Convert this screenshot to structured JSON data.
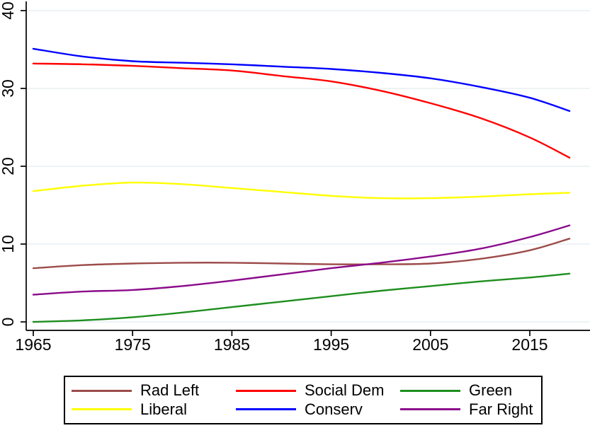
{
  "figure": {
    "background_color": "#ffffff",
    "axis_color": "#000000",
    "gridline_color": "#e8eff4",
    "tick_label_color": "#000000"
  },
  "chart_data": {
    "type": "line",
    "title": "",
    "xlabel": "",
    "ylabel": "",
    "x": [
      1965,
      1970,
      1975,
      1980,
      1985,
      1990,
      1995,
      2000,
      2005,
      2010,
      2015,
      2019
    ],
    "series": [
      {
        "name": "Rad Left",
        "color": "#9c4c4a",
        "values": [
          6.9,
          7.3,
          7.5,
          7.6,
          7.6,
          7.5,
          7.4,
          7.4,
          7.5,
          8.1,
          9.2,
          10.7
        ]
      },
      {
        "name": "Social Dem",
        "color": "#ff0000",
        "values": [
          33.2,
          33.1,
          32.9,
          32.6,
          32.3,
          31.6,
          30.9,
          29.7,
          28.1,
          26.2,
          23.7,
          21.1
        ]
      },
      {
        "name": "Green",
        "color": "#1e8e1e",
        "values": [
          0.0,
          0.2,
          0.6,
          1.2,
          1.9,
          2.6,
          3.3,
          4.0,
          4.6,
          5.2,
          5.7,
          6.2
        ]
      },
      {
        "name": "Liberal",
        "color": "#ffff00",
        "values": [
          16.8,
          17.5,
          17.9,
          17.7,
          17.2,
          16.7,
          16.2,
          15.9,
          15.9,
          16.1,
          16.4,
          16.6
        ]
      },
      {
        "name": "Conserv",
        "color": "#0000ff",
        "values": [
          35.1,
          34.1,
          33.5,
          33.3,
          33.1,
          32.8,
          32.5,
          32.0,
          31.3,
          30.2,
          28.8,
          27.1
        ]
      },
      {
        "name": "Far Right",
        "color": "#8b0b8b",
        "values": [
          3.5,
          3.9,
          4.1,
          4.6,
          5.3,
          6.1,
          6.9,
          7.6,
          8.4,
          9.4,
          10.9,
          12.4
        ]
      }
    ],
    "x_ticks": [
      "1965",
      "1975",
      "1985",
      "1995",
      "2005",
      "2015"
    ],
    "x_tick_years": [
      1965,
      1975,
      1985,
      1995,
      2005,
      2015
    ],
    "y_ticks": [
      "0",
      "10",
      "20",
      "30",
      "40"
    ],
    "y_tick_values": [
      0,
      10,
      20,
      30,
      40
    ],
    "xlim": [
      1965,
      2019
    ],
    "ylim": [
      0,
      40
    ],
    "grid": "horizontal",
    "legend_position": "bottom",
    "legend_columns": 3,
    "legend_entries": [
      "Rad Left",
      "Social Dem",
      "Green",
      "Liberal",
      "Conserv",
      "Far Right"
    ]
  }
}
